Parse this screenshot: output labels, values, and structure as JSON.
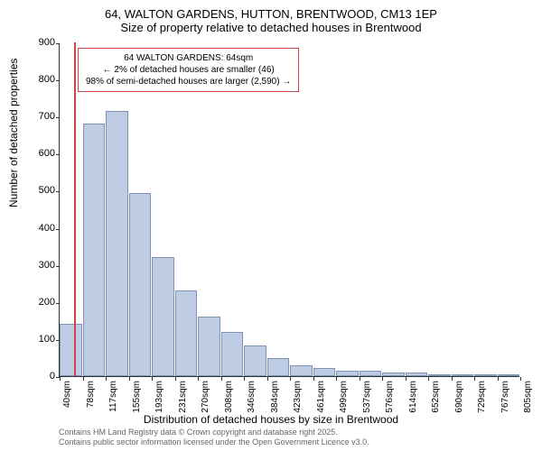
{
  "chart": {
    "title": "64, WALTON GARDENS, HUTTON, BRENTWOOD, CM13 1EP",
    "subtitle": "Size of property relative to detached houses in Brentwood",
    "type": "histogram",
    "background_color": "#ffffff",
    "bar_fill_color": "#becde3",
    "bar_border_color": "#7f93b8",
    "y_axis": {
      "label": "Number of detached properties",
      "min": 0,
      "max": 900,
      "step": 100,
      "ticks": [
        0,
        100,
        200,
        300,
        400,
        500,
        600,
        700,
        800,
        900
      ]
    },
    "x_axis": {
      "label": "Distribution of detached houses by size in Brentwood",
      "min_value": 40,
      "bucket_width": 38.3,
      "ticks": [
        "40sqm",
        "78sqm",
        "117sqm",
        "155sqm",
        "193sqm",
        "231sqm",
        "270sqm",
        "308sqm",
        "346sqm",
        "384sqm",
        "423sqm",
        "461sqm",
        "499sqm",
        "537sqm",
        "576sqm",
        "614sqm",
        "652sqm",
        "690sqm",
        "729sqm",
        "767sqm",
        "805sqm"
      ]
    },
    "bars": [
      140,
      680,
      715,
      495,
      320,
      230,
      160,
      120,
      82,
      48,
      30,
      22,
      15,
      15,
      10,
      10,
      5,
      5,
      3,
      3
    ],
    "marker": {
      "value_sqm": 64,
      "color": "#cc4444",
      "callout": {
        "line1": "64 WALTON GARDENS: 64sqm",
        "line2": "← 2% of detached houses are smaller (46)",
        "line3": "98% of semi-detached houses are larger (2,590) →"
      }
    }
  },
  "footer": {
    "line1": "Contains HM Land Registry data © Crown copyright and database right 2025.",
    "line2": "Contains public sector information licensed under the Open Government Licence v3.0."
  }
}
